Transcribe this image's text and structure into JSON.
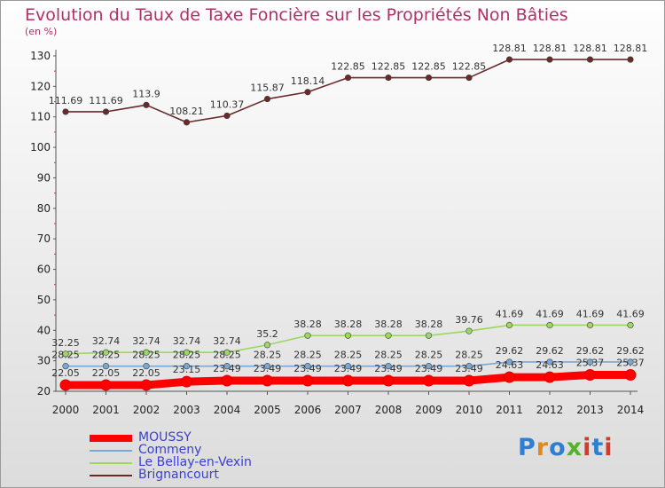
{
  "title": "Evolution du Taux de Taxe Foncière sur les Propriétés Non Bâties",
  "unit_label": "(en %)",
  "logo": {
    "text": "Proxiti",
    "colors": [
      "#2f7fd0",
      "#e08a1e",
      "#2f7fd0",
      "#58b030",
      "#d23a2a",
      "#2f7fd0",
      "#d23a2a"
    ]
  },
  "chart_data": {
    "type": "line",
    "x": [
      "2000",
      "2001",
      "2002",
      "2003",
      "2004",
      "2005",
      "2006",
      "2007",
      "2008",
      "2009",
      "2010",
      "2011",
      "2012",
      "2013",
      "2014"
    ],
    "ylim": [
      20,
      130
    ],
    "yticks": [
      20,
      30,
      40,
      50,
      60,
      70,
      80,
      90,
      100,
      110,
      120,
      130
    ],
    "grid": false,
    "legend_position": "bottom-left",
    "series": [
      {
        "name": "MOUSSY",
        "color": "#ff0000",
        "values": [
          22.05,
          22.05,
          22.05,
          23.15,
          23.49,
          23.49,
          23.49,
          23.49,
          23.49,
          23.49,
          23.49,
          24.63,
          24.63,
          25.37,
          25.37
        ],
        "labels": [
          "22.05",
          "22.05",
          "22.05",
          "23.15",
          "23.49",
          "23.49",
          "23.49",
          "23.49",
          "23.49",
          "23.49",
          "23.49",
          "24.63",
          "24.63",
          "25.37",
          "25.37"
        ]
      },
      {
        "name": "Commeny",
        "color": "#7aa8d4",
        "values": [
          28.25,
          28.25,
          28.25,
          28.25,
          28.25,
          28.25,
          28.25,
          28.25,
          28.25,
          28.25,
          28.25,
          29.62,
          29.62,
          29.62,
          29.62
        ],
        "labels": [
          "28.25",
          "28.25",
          "28.25",
          "28.25",
          "28.25",
          "28.25",
          "28.25",
          "28.25",
          "28.25",
          "28.25",
          "28.25",
          "29.62",
          "29.62",
          "29.62",
          "29.62"
        ]
      },
      {
        "name": "Le Bellay-en-Vexin",
        "color": "#9ad860",
        "values": [
          32.25,
          32.74,
          32.74,
          32.74,
          32.74,
          35.2,
          38.28,
          38.28,
          38.28,
          38.28,
          39.76,
          41.69,
          41.69,
          41.69,
          41.69
        ],
        "labels": [
          "32.25",
          "32.74",
          "32.74",
          "32.74",
          "32.74",
          "35.2",
          "38.28",
          "38.28",
          "38.28",
          "38.28",
          "39.76",
          "41.69",
          "41.69",
          "41.69",
          "41.69"
        ]
      },
      {
        "name": "Brignancourt",
        "color": "#6a2a2a",
        "values": [
          111.69,
          111.69,
          113.9,
          108.21,
          110.37,
          115.87,
          118.14,
          122.85,
          122.85,
          122.85,
          122.85,
          128.81,
          128.81,
          128.81,
          128.81
        ],
        "labels": [
          "111.69",
          "111.69",
          "113.9",
          "108.21",
          "110.37",
          "115.87",
          "118.14",
          "122.85",
          "122.85",
          "122.85",
          "122.85",
          "128.81",
          "128.81",
          "128.81",
          "128.81"
        ]
      }
    ]
  }
}
